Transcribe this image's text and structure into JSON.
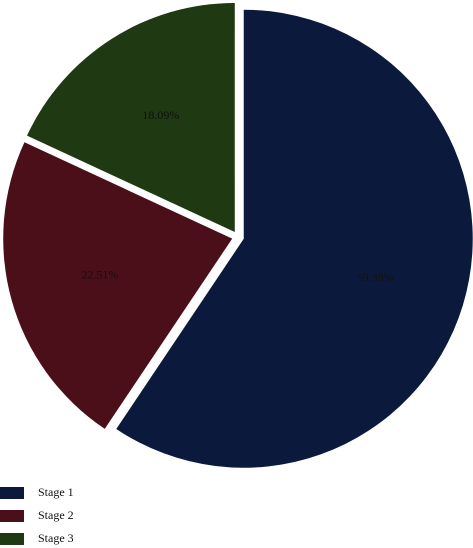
{
  "chart_data": {
    "type": "pie",
    "categories": [
      "Stage 1",
      "Stage 2",
      "Stage 3"
    ],
    "values": [
      59.39,
      22.51,
      18.09
    ],
    "value_labels": [
      "59.39%",
      "22.51%",
      "18.09%"
    ],
    "colors": [
      "#0b1a3c",
      "#4b0f19",
      "#1f3a12"
    ],
    "legend": "bottom-left"
  }
}
